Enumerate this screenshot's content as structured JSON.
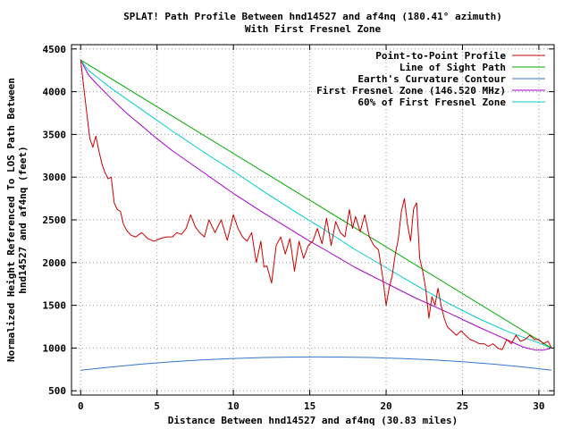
{
  "chart_data": {
    "type": "line",
    "title_line1": "SPLAT! Path Profile Between hnd14527 and af4nq (180.41° azimuth)",
    "title_line2": "With First Fresnel Zone",
    "xlabel": "Distance Between hnd14527 and af4nq (30.83 miles)",
    "ylabel_line1": "Normalized Height Referenced To LOS Path Between",
    "ylabel_line2": "hnd14527 and af4nq (feet)",
    "xlim": [
      -0.6,
      31.0
    ],
    "ylim": [
      450,
      4550
    ],
    "xticks": [
      0,
      5,
      10,
      15,
      20,
      25,
      30
    ],
    "yticks": [
      500,
      1000,
      1500,
      2000,
      2500,
      3000,
      3500,
      4000,
      4500
    ],
    "grid": true,
    "legend_position": "top-right",
    "series": [
      {
        "name": "Point-to-Point Profile",
        "color": "#cc0000",
        "x": [
          0,
          0.2,
          0.4,
          0.6,
          0.8,
          1.0,
          1.2,
          1.4,
          1.6,
          1.8,
          2.0,
          2.2,
          2.4,
          2.6,
          2.8,
          3.0,
          3.3,
          3.6,
          4.0,
          4.4,
          4.8,
          5.2,
          5.6,
          6.0,
          6.3,
          6.6,
          6.9,
          7.2,
          7.5,
          7.8,
          8.1,
          8.4,
          8.8,
          9.2,
          9.6,
          10.0,
          10.3,
          10.6,
          10.9,
          11.2,
          11.5,
          11.8,
          12.0,
          12.2,
          12.5,
          12.8,
          13.1,
          13.4,
          13.7,
          14.0,
          14.3,
          14.6,
          14.9,
          15.2,
          15.5,
          15.8,
          16.1,
          16.4,
          16.7,
          17.0,
          17.3,
          17.6,
          17.8,
          18.0,
          18.3,
          18.6,
          18.9,
          19.2,
          19.5,
          19.8,
          20.0,
          20.2,
          20.4,
          20.6,
          20.8,
          21.0,
          21.2,
          21.4,
          21.6,
          21.8,
          22.0,
          22.2,
          22.4,
          22.6,
          22.8,
          23.0,
          23.2,
          23.4,
          23.6,
          23.8,
          24.0,
          24.3,
          24.6,
          24.9,
          25.2,
          25.5,
          25.8,
          26.1,
          26.4,
          26.7,
          27.0,
          27.3,
          27.6,
          27.9,
          28.2,
          28.5,
          28.8,
          29.1,
          29.4,
          29.7,
          30.0,
          30.3,
          30.6,
          30.83
        ],
        "y": [
          4370,
          4050,
          3750,
          3450,
          3350,
          3480,
          3300,
          3150,
          3050,
          2980,
          3000,
          2700,
          2620,
          2600,
          2450,
          2380,
          2320,
          2300,
          2350,
          2280,
          2250,
          2280,
          2300,
          2300,
          2350,
          2330,
          2400,
          2560,
          2420,
          2350,
          2300,
          2500,
          2350,
          2500,
          2260,
          2560,
          2400,
          2300,
          2250,
          2350,
          2000,
          2250,
          1950,
          1960,
          1760,
          2200,
          2300,
          2100,
          2280,
          1900,
          2250,
          2050,
          2200,
          2250,
          2400,
          2220,
          2520,
          2200,
          2480,
          2350,
          2300,
          2620,
          2400,
          2540,
          2360,
          2560,
          2300,
          2200,
          2150,
          1800,
          1500,
          1700,
          1850,
          2100,
          2280,
          2600,
          2750,
          2450,
          2250,
          2630,
          2700,
          2050,
          1900,
          1680,
          1350,
          1600,
          1500,
          1700,
          1500,
          1350,
          1250,
          1200,
          1150,
          1200,
          1150,
          1100,
          1080,
          1050,
          1050,
          1020,
          1050,
          1000,
          980,
          1100,
          1050,
          1150,
          1080,
          1100,
          1150,
          1100,
          1100,
          1050,
          1080,
          1000
        ]
      },
      {
        "name": "Line of Sight Path",
        "color": "#00aa00",
        "x": [
          0,
          30.83
        ],
        "y": [
          4370,
          1000
        ]
      },
      {
        "name": "Earth's Curvature Contour",
        "color": "#3377cc",
        "x": [
          0,
          2,
          4,
          6,
          8,
          10,
          12,
          14,
          15.4,
          17,
          19,
          21,
          23,
          25,
          27,
          29,
          30.83
        ],
        "y": [
          740,
          778,
          812,
          840,
          862,
          878,
          889,
          895,
          896,
          895,
          889,
          878,
          862,
          840,
          812,
          778,
          740
        ]
      },
      {
        "name": "First Fresnel Zone (146.520 MHz)",
        "color": "#aa00cc",
        "x": [
          0,
          0.5,
          1,
          2,
          3,
          4,
          5,
          6,
          8,
          10,
          12,
          14,
          15,
          16,
          18,
          20,
          22,
          24,
          26,
          27,
          28,
          29,
          29.8,
          30.3,
          30.83
        ],
        "y": [
          4370,
          4200,
          4100,
          3920,
          3750,
          3600,
          3450,
          3310,
          3060,
          2810,
          2580,
          2360,
          2250,
          2150,
          1940,
          1760,
          1580,
          1420,
          1250,
          1170,
          1090,
          1010,
          975,
          975,
          1000
        ]
      },
      {
        "name": "60% of First Fresnel Zone",
        "color": "#00cccc",
        "x": [
          0,
          0.5,
          1,
          2,
          4,
          6,
          8,
          10,
          12,
          14,
          16,
          18,
          20,
          22,
          24,
          26,
          28,
          30,
          30.83
        ],
        "y": [
          4370,
          4250,
          4180,
          4040,
          3790,
          3540,
          3300,
          3070,
          2830,
          2600,
          2380,
          2150,
          1940,
          1730,
          1530,
          1350,
          1190,
          1060,
          1000
        ]
      }
    ]
  }
}
